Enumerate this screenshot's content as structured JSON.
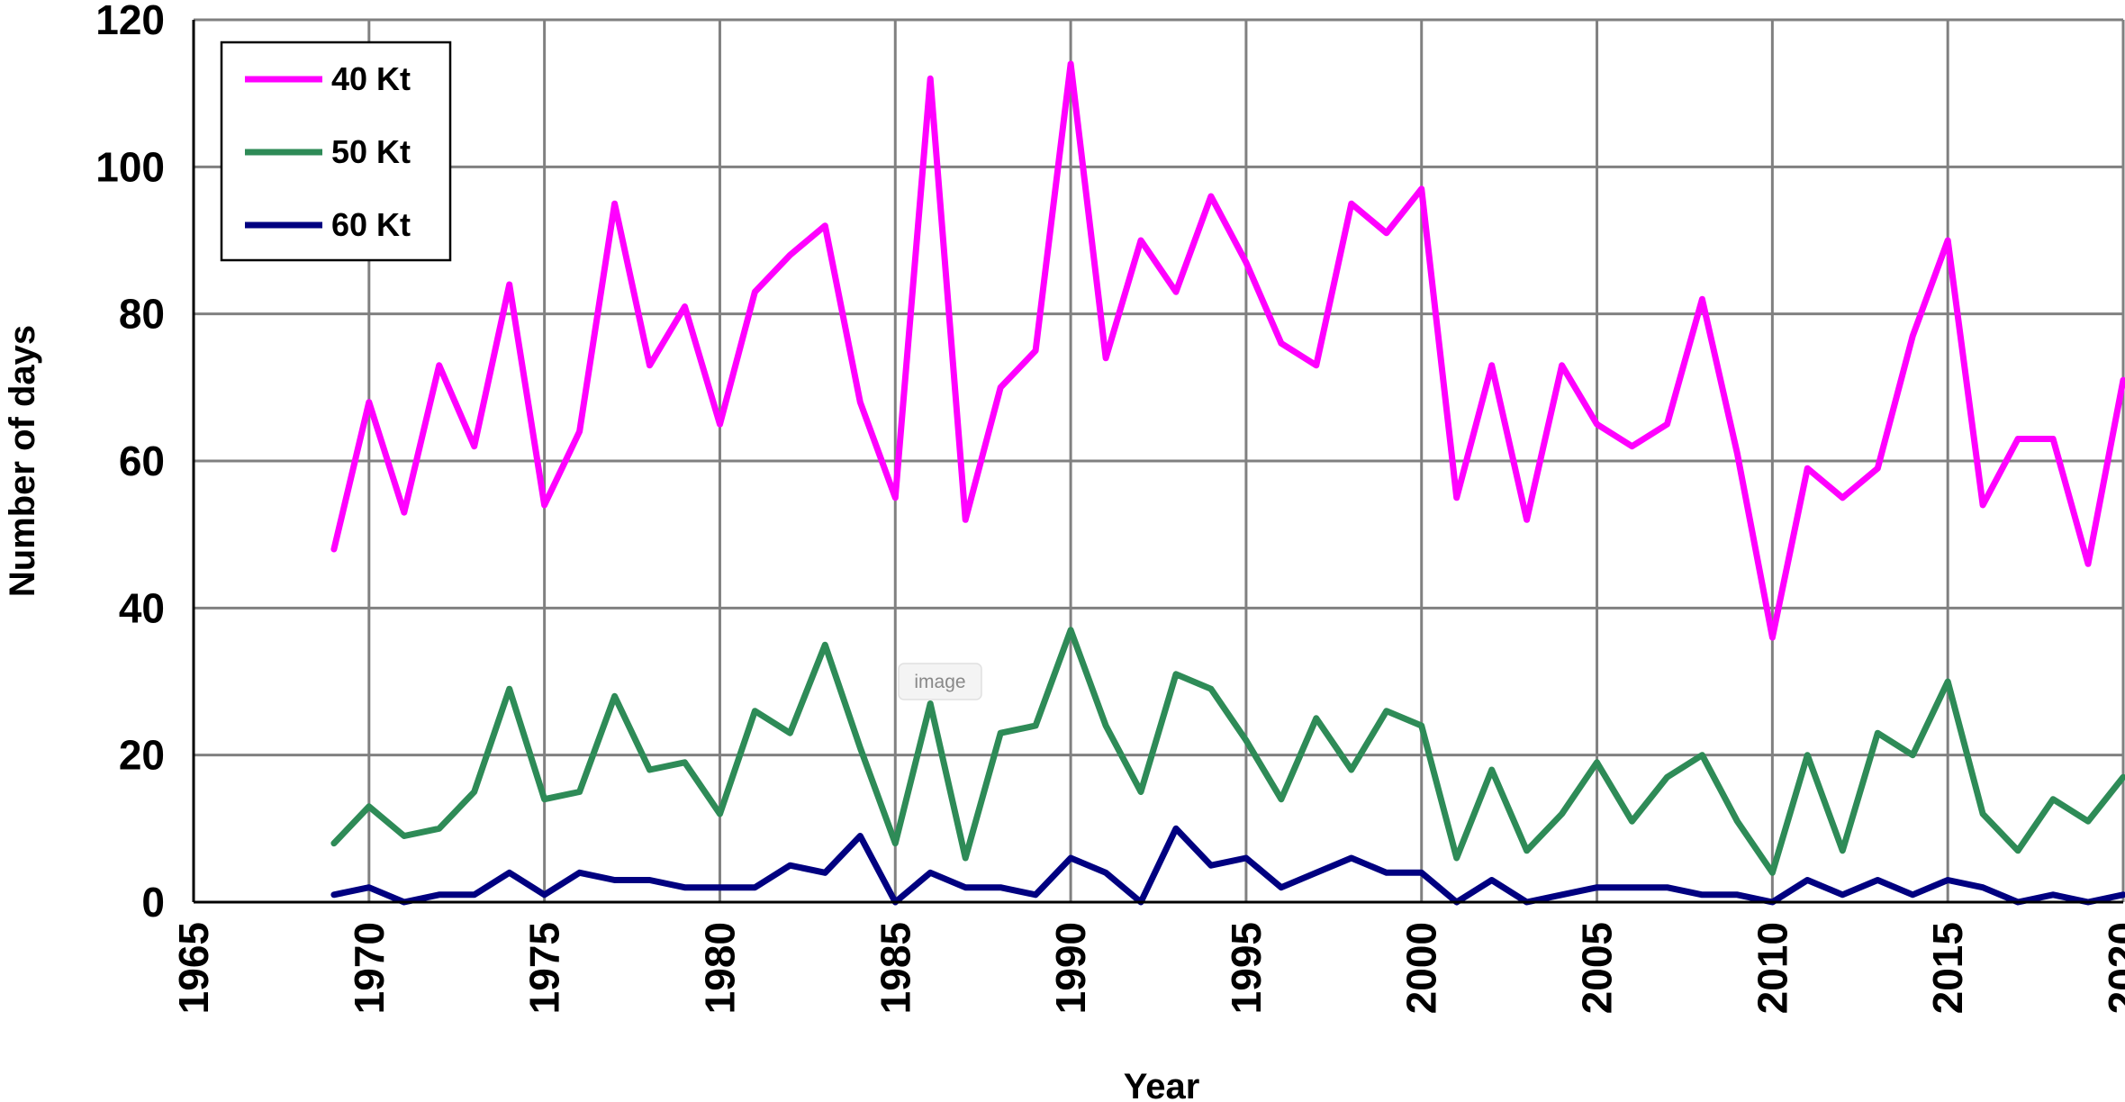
{
  "chart_data": {
    "type": "line",
    "title": "",
    "xlabel": "Year",
    "ylabel": "Number of days",
    "xlim": [
      1965,
      2020
    ],
    "ylim": [
      0,
      120
    ],
    "xticks": [
      1965,
      1970,
      1975,
      1980,
      1985,
      1990,
      1995,
      2000,
      2005,
      2010,
      2015,
      2020
    ],
    "yticks": [
      0,
      20,
      40,
      60,
      80,
      100,
      120
    ],
    "grid": true,
    "legend_position": "top-left",
    "x": [
      1969,
      1970,
      1971,
      1972,
      1973,
      1974,
      1975,
      1976,
      1977,
      1978,
      1979,
      1980,
      1981,
      1982,
      1983,
      1984,
      1985,
      1986,
      1987,
      1988,
      1989,
      1990,
      1991,
      1992,
      1993,
      1994,
      1995,
      1996,
      1997,
      1998,
      1999,
      2000,
      2001,
      2002,
      2003,
      2004,
      2005,
      2006,
      2007,
      2008,
      2009,
      2010,
      2011,
      2012,
      2013,
      2014,
      2015,
      2016,
      2017,
      2018,
      2019,
      2020
    ],
    "series": [
      {
        "name": "40 Kt",
        "color": "#ff00ff",
        "values": [
          48,
          68,
          53,
          73,
          62,
          84,
          54,
          64,
          95,
          73,
          81,
          65,
          83,
          88,
          92,
          68,
          55,
          112,
          52,
          70,
          75,
          114,
          74,
          90,
          83,
          96,
          87,
          76,
          73,
          95,
          91,
          97,
          55,
          73,
          52,
          73,
          65,
          62,
          65,
          82,
          61,
          36,
          59,
          55,
          59,
          77,
          90,
          54,
          63,
          63,
          46,
          71
        ]
      },
      {
        "name": "50 Kt",
        "color": "#2e8b57",
        "values": [
          8,
          13,
          9,
          10,
          15,
          29,
          14,
          15,
          28,
          18,
          19,
          12,
          26,
          23,
          35,
          21,
          8,
          27,
          6,
          23,
          24,
          37,
          24,
          15,
          31,
          29,
          22,
          14,
          25,
          18,
          26,
          24,
          6,
          18,
          7,
          12,
          19,
          11,
          17,
          20,
          11,
          4,
          20,
          7,
          23,
          20,
          30,
          12,
          7,
          14,
          11,
          17
        ]
      },
      {
        "name": "60 Kt",
        "color": "#000080",
        "values": [
          1,
          2,
          0,
          1,
          1,
          4,
          1,
          4,
          3,
          3,
          2,
          2,
          2,
          5,
          4,
          9,
          0,
          4,
          2,
          2,
          1,
          6,
          4,
          0,
          10,
          5,
          6,
          2,
          4,
          6,
          4,
          4,
          0,
          3,
          0,
          1,
          2,
          2,
          2,
          1,
          1,
          0,
          3,
          1,
          3,
          1,
          3,
          2,
          0,
          1,
          0,
          1
        ]
      }
    ]
  },
  "watermark": {
    "text": "image"
  }
}
